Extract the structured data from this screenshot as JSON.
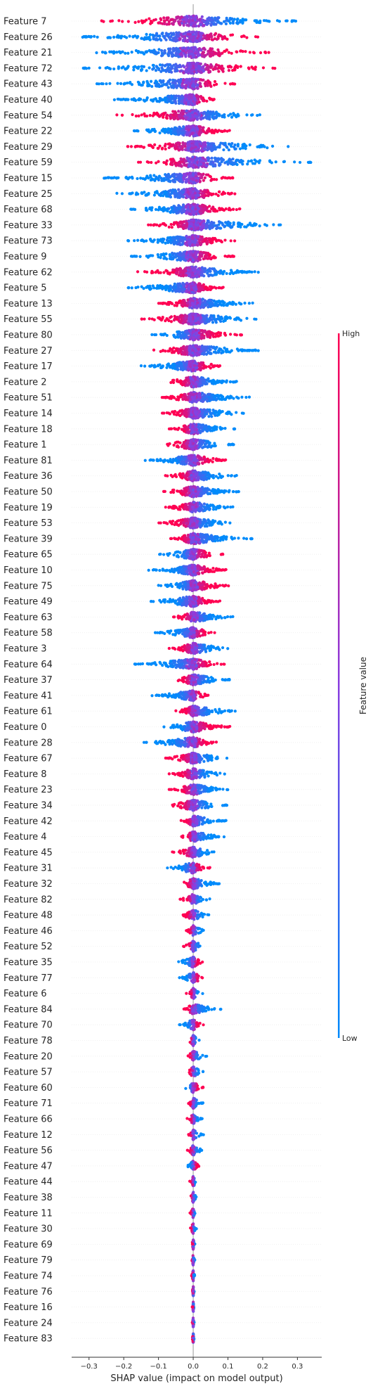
{
  "chart_data": {
    "type": "scatter",
    "subtype": "shap-beeswarm",
    "title": "",
    "xlabel": "SHAP value (impact on model output)",
    "xlim": [
      -0.35,
      0.37
    ],
    "xticks": [
      -0.3,
      -0.2,
      -0.1,
      0.0,
      0.1,
      0.2,
      0.3
    ],
    "xtick_labels": [
      "−0.3",
      "−0.2",
      "−0.1",
      "0.0",
      "0.1",
      "0.2",
      "0.3"
    ],
    "colorbar": {
      "title": "Feature value",
      "high_label": "High",
      "low_label": "Low",
      "high_color": "#ff0052",
      "mid_color": "#8a3fe0",
      "low_color": "#008bfb"
    },
    "colors": {
      "zero_line": "#999999",
      "row_guide": "#eeeeee",
      "axis": "#333333"
    },
    "features": [
      {
        "name": "Feature 7",
        "min": -0.27,
        "max": 0.3,
        "high_side": "neg"
      },
      {
        "name": "Feature 26",
        "min": -0.33,
        "max": 0.22,
        "high_side": "pos"
      },
      {
        "name": "Feature 21",
        "min": -0.31,
        "max": 0.22,
        "high_side": "pos"
      },
      {
        "name": "Feature 72",
        "min": -0.32,
        "max": 0.26,
        "high_side": "pos"
      },
      {
        "name": "Feature 43",
        "min": -0.28,
        "max": 0.12,
        "high_side": "pos"
      },
      {
        "name": "Feature 40",
        "min": -0.23,
        "max": 0.07,
        "high_side": "pos"
      },
      {
        "name": "Feature 54",
        "min": -0.22,
        "max": 0.2,
        "high_side": "neg"
      },
      {
        "name": "Feature 22",
        "min": -0.18,
        "max": 0.11,
        "high_side": "pos"
      },
      {
        "name": "Feature 29",
        "min": -0.19,
        "max": 0.31,
        "high_side": "neg"
      },
      {
        "name": "Feature 59",
        "min": -0.17,
        "max": 0.34,
        "high_side": "neg"
      },
      {
        "name": "Feature 15",
        "min": -0.26,
        "max": 0.12,
        "high_side": "pos"
      },
      {
        "name": "Feature 25",
        "min": -0.22,
        "max": 0.13,
        "high_side": "pos"
      },
      {
        "name": "Feature 68",
        "min": -0.19,
        "max": 0.14,
        "high_side": "pos"
      },
      {
        "name": "Feature 33",
        "min": -0.13,
        "max": 0.28,
        "high_side": "neg"
      },
      {
        "name": "Feature 73",
        "min": -0.19,
        "max": 0.12,
        "high_side": "pos"
      },
      {
        "name": "Feature 9",
        "min": -0.18,
        "max": 0.12,
        "high_side": "pos"
      },
      {
        "name": "Feature 62",
        "min": -0.16,
        "max": 0.19,
        "high_side": "neg"
      },
      {
        "name": "Feature 5",
        "min": -0.2,
        "max": 0.09,
        "high_side": "pos"
      },
      {
        "name": "Feature 13",
        "min": -0.1,
        "max": 0.18,
        "high_side": "neg"
      },
      {
        "name": "Feature 55",
        "min": -0.15,
        "max": 0.2,
        "high_side": "neg"
      },
      {
        "name": "Feature 80",
        "min": -0.12,
        "max": 0.14,
        "high_side": "pos"
      },
      {
        "name": "Feature 27",
        "min": -0.13,
        "max": 0.19,
        "high_side": "neg"
      },
      {
        "name": "Feature 17",
        "min": -0.15,
        "max": 0.09,
        "high_side": "pos"
      },
      {
        "name": "Feature 2",
        "min": -0.09,
        "max": 0.13,
        "high_side": "neg"
      },
      {
        "name": "Feature 51",
        "min": -0.09,
        "max": 0.17,
        "high_side": "neg"
      },
      {
        "name": "Feature 14",
        "min": -0.09,
        "max": 0.16,
        "high_side": "neg"
      },
      {
        "name": "Feature 18",
        "min": -0.07,
        "max": 0.12,
        "high_side": "neg"
      },
      {
        "name": "Feature 1",
        "min": -0.1,
        "max": 0.12,
        "high_side": "neg"
      },
      {
        "name": "Feature 81",
        "min": -0.14,
        "max": 0.1,
        "high_side": "pos"
      },
      {
        "name": "Feature 36",
        "min": -0.08,
        "max": 0.13,
        "high_side": "neg"
      },
      {
        "name": "Feature 50",
        "min": -0.09,
        "max": 0.14,
        "high_side": "neg"
      },
      {
        "name": "Feature 19",
        "min": -0.08,
        "max": 0.12,
        "high_side": "neg"
      },
      {
        "name": "Feature 53",
        "min": -0.1,
        "max": 0.12,
        "high_side": "neg"
      },
      {
        "name": "Feature 39",
        "min": -0.07,
        "max": 0.17,
        "high_side": "neg"
      },
      {
        "name": "Feature 65",
        "min": -0.1,
        "max": 0.09,
        "high_side": "pos"
      },
      {
        "name": "Feature 10",
        "min": -0.13,
        "max": 0.1,
        "high_side": "pos"
      },
      {
        "name": "Feature 75",
        "min": -0.1,
        "max": 0.11,
        "high_side": "pos"
      },
      {
        "name": "Feature 49",
        "min": -0.13,
        "max": 0.08,
        "high_side": "pos"
      },
      {
        "name": "Feature 63",
        "min": -0.06,
        "max": 0.12,
        "high_side": "neg"
      },
      {
        "name": "Feature 58",
        "min": -0.11,
        "max": 0.07,
        "high_side": "pos"
      },
      {
        "name": "Feature 3",
        "min": -0.07,
        "max": 0.11,
        "high_side": "neg"
      },
      {
        "name": "Feature 64",
        "min": -0.17,
        "max": 0.09,
        "high_side": "pos"
      },
      {
        "name": "Feature 37",
        "min": -0.06,
        "max": 0.11,
        "high_side": "neg"
      },
      {
        "name": "Feature 41",
        "min": -0.12,
        "max": 0.05,
        "high_side": "pos"
      },
      {
        "name": "Feature 61",
        "min": -0.05,
        "max": 0.13,
        "high_side": "neg"
      },
      {
        "name": "Feature 0",
        "min": -0.09,
        "max": 0.11,
        "high_side": "pos"
      },
      {
        "name": "Feature 28",
        "min": -0.15,
        "max": 0.07,
        "high_side": "pos"
      },
      {
        "name": "Feature 67",
        "min": -0.08,
        "max": 0.11,
        "high_side": "neg"
      },
      {
        "name": "Feature 8",
        "min": -0.07,
        "max": 0.1,
        "high_side": "neg"
      },
      {
        "name": "Feature 23",
        "min": -0.07,
        "max": 0.1,
        "high_side": "neg"
      },
      {
        "name": "Feature 34",
        "min": -0.08,
        "max": 0.1,
        "high_side": "neg"
      },
      {
        "name": "Feature 42",
        "min": -0.04,
        "max": 0.1,
        "high_side": "neg"
      },
      {
        "name": "Feature 4",
        "min": -0.04,
        "max": 0.09,
        "high_side": "neg"
      },
      {
        "name": "Feature 45",
        "min": -0.06,
        "max": 0.07,
        "high_side": "neg"
      },
      {
        "name": "Feature 31",
        "min": -0.08,
        "max": 0.05,
        "high_side": "pos"
      },
      {
        "name": "Feature 32",
        "min": -0.04,
        "max": 0.08,
        "high_side": "neg"
      },
      {
        "name": "Feature 82",
        "min": -0.04,
        "max": 0.05,
        "high_side": "neg"
      },
      {
        "name": "Feature 48",
        "min": -0.04,
        "max": 0.05,
        "high_side": "neg"
      },
      {
        "name": "Feature 46",
        "min": -0.02,
        "max": 0.04,
        "high_side": "neg"
      },
      {
        "name": "Feature 52",
        "min": -0.03,
        "max": 0.04,
        "high_side": "neg"
      },
      {
        "name": "Feature 35",
        "min": -0.05,
        "max": 0.03,
        "high_side": "pos"
      },
      {
        "name": "Feature 77",
        "min": -0.04,
        "max": 0.04,
        "high_side": "pos"
      },
      {
        "name": "Feature 6",
        "min": -0.02,
        "max": 0.03,
        "high_side": "neg"
      },
      {
        "name": "Feature 84",
        "min": -0.03,
        "max": 0.08,
        "high_side": "neg"
      },
      {
        "name": "Feature 70",
        "min": -0.04,
        "max": 0.03,
        "high_side": "pos"
      },
      {
        "name": "Feature 78",
        "min": -0.02,
        "max": 0.02,
        "high_side": "neg"
      },
      {
        "name": "Feature 20",
        "min": -0.02,
        "max": 0.04,
        "high_side": "neg"
      },
      {
        "name": "Feature 57",
        "min": -0.02,
        "max": 0.03,
        "high_side": "neg"
      },
      {
        "name": "Feature 60",
        "min": -0.03,
        "max": 0.03,
        "high_side": "pos"
      },
      {
        "name": "Feature 71",
        "min": -0.02,
        "max": 0.03,
        "high_side": "neg"
      },
      {
        "name": "Feature 66",
        "min": -0.02,
        "max": 0.03,
        "high_side": "neg"
      },
      {
        "name": "Feature 12",
        "min": -0.02,
        "max": 0.03,
        "high_side": "neg"
      },
      {
        "name": "Feature 56",
        "min": -0.02,
        "max": 0.03,
        "high_side": "neg"
      },
      {
        "name": "Feature 47",
        "min": -0.02,
        "max": 0.02,
        "high_side": "pos"
      },
      {
        "name": "Feature 44",
        "min": -0.01,
        "max": 0.01,
        "high_side": "neg"
      },
      {
        "name": "Feature 38",
        "min": -0.01,
        "max": 0.01,
        "high_side": "neg"
      },
      {
        "name": "Feature 11",
        "min": -0.01,
        "max": 0.01,
        "high_side": "neg"
      },
      {
        "name": "Feature 30",
        "min": -0.01,
        "max": 0.01,
        "high_side": "neg"
      },
      {
        "name": "Feature 69",
        "min": -0.005,
        "max": 0.005,
        "high_side": "neg"
      },
      {
        "name": "Feature 79",
        "min": -0.005,
        "max": 0.005,
        "high_side": "neg"
      },
      {
        "name": "Feature 74",
        "min": -0.005,
        "max": 0.005,
        "high_side": "neg"
      },
      {
        "name": "Feature 76",
        "min": -0.003,
        "max": 0.003,
        "high_side": "neg"
      },
      {
        "name": "Feature 16",
        "min": -0.003,
        "max": 0.003,
        "high_side": "neg"
      },
      {
        "name": "Feature 24",
        "min": -0.003,
        "max": 0.003,
        "high_side": "neg"
      },
      {
        "name": "Feature 83",
        "min": -0.003,
        "max": 0.003,
        "high_side": "neg"
      }
    ]
  }
}
